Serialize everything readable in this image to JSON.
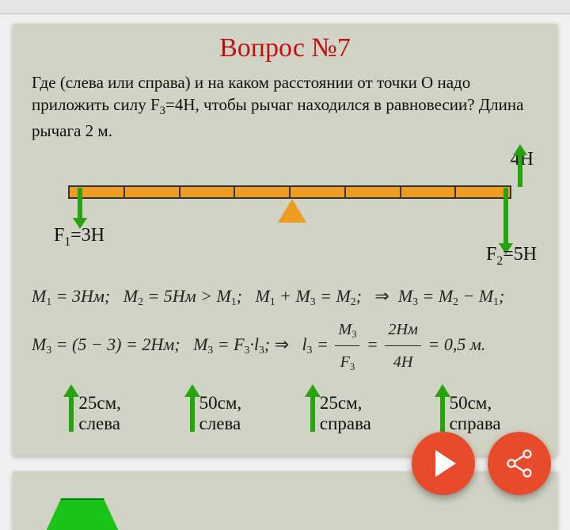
{
  "title": "Вопрос №7",
  "question_html": "Где (слева или справа) и на каком расстоянии от точки О надо приложить силу F<sub>3</sub>=4Н, чтобы рычаг находился в равновесии? Длина рычага 2 м.",
  "diagram": {
    "force_right_up_label": "4Н",
    "f1_label_html": "F<sub>1</sub>=3Н",
    "f2_label_html": "F<sub>2</sub>=5Н",
    "segments": 8,
    "lever_color": "#ef9c23",
    "arrow_color": "#27a30d",
    "f1_value_N": 3,
    "f2_value_N": 5,
    "f3_value_N": 4,
    "lever_length_m": 2
  },
  "equations": {
    "line1_html": "M<sub>1</sub> = 3Нм;&nbsp;&nbsp;&nbsp;M<sub>2</sub> = 5Нм &gt; M<sub>1</sub>;&nbsp;&nbsp;&nbsp;M<sub>1</sub> + M<sub>3</sub> = M<sub>2</sub>;&nbsp;&nbsp;&nbsp;<span class='eq-sym'>⇒</span>&nbsp;&nbsp;M<sub>3</sub> = M<sub>2</sub> − M<sub>1</sub>;",
    "line2_html": "M<sub>3</sub> = (5 − 3) = 2Нм;&nbsp;&nbsp;&nbsp;M<sub>3</sub> = F<sub>3</sub>·l<sub>3</sub>;&nbsp;<span class='eq-sym'>⇒</span>&nbsp;&nbsp;&nbsp;l<sub>3</sub> = <span class='frac'><span class='num'>M<sub>3</sub></span><span class='den'>F<sub>3</sub></span></span> = <span class='frac'><span class='num'>2Нм</span><span class='den'>4Н</span></span> = 0,5 м."
  },
  "answers": [
    {
      "dist": "25см,",
      "side": "слева"
    },
    {
      "dist": "50см,",
      "side": "слева"
    },
    {
      "dist": "25см,",
      "side": "справа"
    },
    {
      "dist": "50см,",
      "side": "справа"
    }
  ],
  "colors": {
    "slide_bg": "#d1d3c5",
    "title_color": "#c21010",
    "text_color": "#111",
    "fab_color": "#e84b2c",
    "green_shape": "#19c419"
  }
}
